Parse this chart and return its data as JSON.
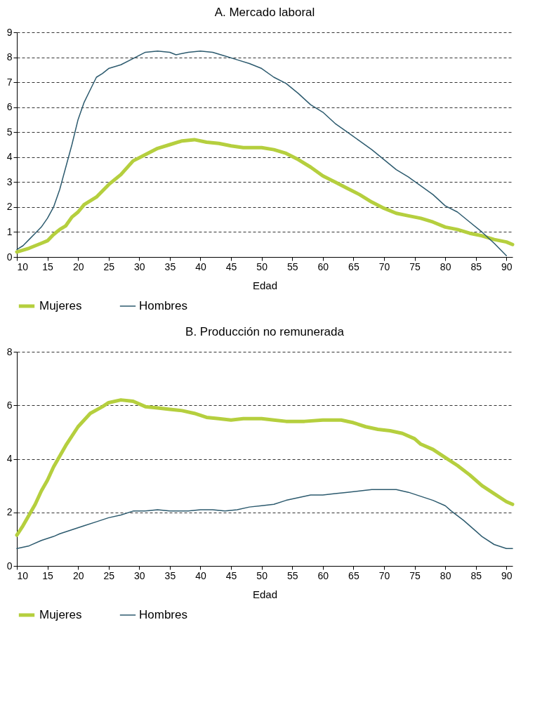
{
  "chart_data": [
    {
      "type": "line",
      "title": "A. Mercado laboral",
      "xlabel": "Edad",
      "xlim": [
        10,
        91
      ],
      "xticks": [
        10,
        15,
        20,
        25,
        30,
        35,
        40,
        45,
        50,
        55,
        60,
        65,
        70,
        75,
        80,
        85,
        90
      ],
      "ylim": [
        0,
        9
      ],
      "yticks": [
        0,
        1,
        2,
        3,
        4,
        5,
        6,
        7,
        8,
        9
      ],
      "grid": "y",
      "legend": "bottom",
      "series": [
        {
          "name": "Mujeres",
          "color": "#b5cf3e",
          "x": [
            10,
            12,
            14,
            15,
            16,
            17,
            18,
            19,
            20,
            21,
            23,
            25,
            27,
            29,
            31,
            33,
            35,
            37,
            39,
            41,
            43,
            45,
            47,
            50,
            52,
            54,
            56,
            58,
            60,
            62,
            64,
            66,
            68,
            70,
            72,
            74,
            76,
            78,
            80,
            82,
            84,
            86,
            88,
            90,
            91
          ],
          "values": [
            0.2,
            0.35,
            0.55,
            0.65,
            0.9,
            1.1,
            1.25,
            1.6,
            1.8,
            2.1,
            2.4,
            2.9,
            3.3,
            3.85,
            4.1,
            4.35,
            4.5,
            4.65,
            4.7,
            4.6,
            4.55,
            4.45,
            4.38,
            4.38,
            4.3,
            4.15,
            3.9,
            3.6,
            3.25,
            3.0,
            2.75,
            2.5,
            2.2,
            1.95,
            1.75,
            1.65,
            1.55,
            1.4,
            1.2,
            1.1,
            0.95,
            0.85,
            0.7,
            0.6,
            0.5
          ]
        },
        {
          "name": "Hombres",
          "color": "#2c5a6e",
          "x": [
            10,
            11,
            12,
            13,
            14,
            15,
            16,
            17,
            18,
            19,
            20,
            21,
            22,
            23,
            24,
            25,
            27,
            29,
            31,
            33,
            35,
            36,
            38,
            40,
            42,
            44,
            46,
            48,
            50,
            52,
            54,
            56,
            58,
            60,
            62,
            64,
            66,
            68,
            70,
            72,
            74,
            76,
            78,
            80,
            82,
            84,
            86,
            88,
            90
          ],
          "values": [
            0.3,
            0.45,
            0.7,
            0.95,
            1.2,
            1.55,
            2.0,
            2.7,
            3.6,
            4.5,
            5.5,
            6.2,
            6.7,
            7.2,
            7.35,
            7.55,
            7.7,
            7.95,
            8.2,
            8.25,
            8.2,
            8.1,
            8.2,
            8.25,
            8.2,
            8.05,
            7.9,
            7.75,
            7.55,
            7.2,
            6.95,
            6.55,
            6.1,
            5.8,
            5.35,
            5.0,
            4.65,
            4.3,
            3.9,
            3.5,
            3.2,
            2.85,
            2.5,
            2.05,
            1.8,
            1.4,
            1.0,
            0.55,
            0.05
          ]
        }
      ]
    },
    {
      "type": "line",
      "title": "B. Producción  no remunerada",
      "xlabel": "Edad",
      "xlim": [
        10,
        91
      ],
      "xticks": [
        10,
        15,
        20,
        25,
        30,
        35,
        40,
        45,
        50,
        55,
        60,
        65,
        70,
        75,
        80,
        85,
        90
      ],
      "ylim": [
        0,
        8
      ],
      "yticks": [
        0,
        2,
        4,
        6,
        8
      ],
      "grid": "y",
      "legend": "bottom",
      "series": [
        {
          "name": "Mujeres",
          "color": "#b5cf3e",
          "x": [
            10,
            11,
            12,
            13,
            14,
            15,
            16,
            18,
            20,
            22,
            24,
            25,
            27,
            29,
            31,
            33,
            35,
            37,
            39,
            41,
            43,
            45,
            47,
            50,
            52,
            54,
            57,
            60,
            63,
            65,
            67,
            69,
            71,
            73,
            75,
            76,
            78,
            80,
            82,
            84,
            86,
            88,
            90,
            91
          ],
          "values": [
            1.15,
            1.5,
            1.9,
            2.3,
            2.8,
            3.2,
            3.7,
            4.5,
            5.2,
            5.7,
            5.95,
            6.1,
            6.2,
            6.15,
            5.95,
            5.9,
            5.85,
            5.8,
            5.7,
            5.55,
            5.5,
            5.45,
            5.5,
            5.5,
            5.45,
            5.4,
            5.4,
            5.45,
            5.45,
            5.35,
            5.2,
            5.1,
            5.05,
            4.95,
            4.75,
            4.55,
            4.35,
            4.05,
            3.75,
            3.4,
            3.0,
            2.7,
            2.4,
            2.3
          ]
        },
        {
          "name": "Hombres",
          "color": "#2c5a6e",
          "x": [
            10,
            12,
            14,
            16,
            17,
            19,
            21,
            23,
            25,
            27,
            29,
            31,
            33,
            35,
            38,
            40,
            42,
            44,
            46,
            48,
            50,
            52,
            54,
            56,
            58,
            60,
            62,
            64,
            66,
            68,
            72,
            74,
            76,
            78,
            80,
            81,
            83,
            85,
            86,
            88,
            90,
            91
          ],
          "values": [
            0.65,
            0.75,
            0.95,
            1.1,
            1.2,
            1.35,
            1.5,
            1.65,
            1.8,
            1.9,
            2.05,
            2.05,
            2.1,
            2.05,
            2.05,
            2.1,
            2.1,
            2.05,
            2.1,
            2.2,
            2.25,
            2.3,
            2.45,
            2.55,
            2.65,
            2.65,
            2.7,
            2.75,
            2.8,
            2.85,
            2.85,
            2.75,
            2.6,
            2.45,
            2.25,
            2.05,
            1.7,
            1.3,
            1.1,
            0.8,
            0.65,
            0.65
          ]
        }
      ]
    }
  ]
}
